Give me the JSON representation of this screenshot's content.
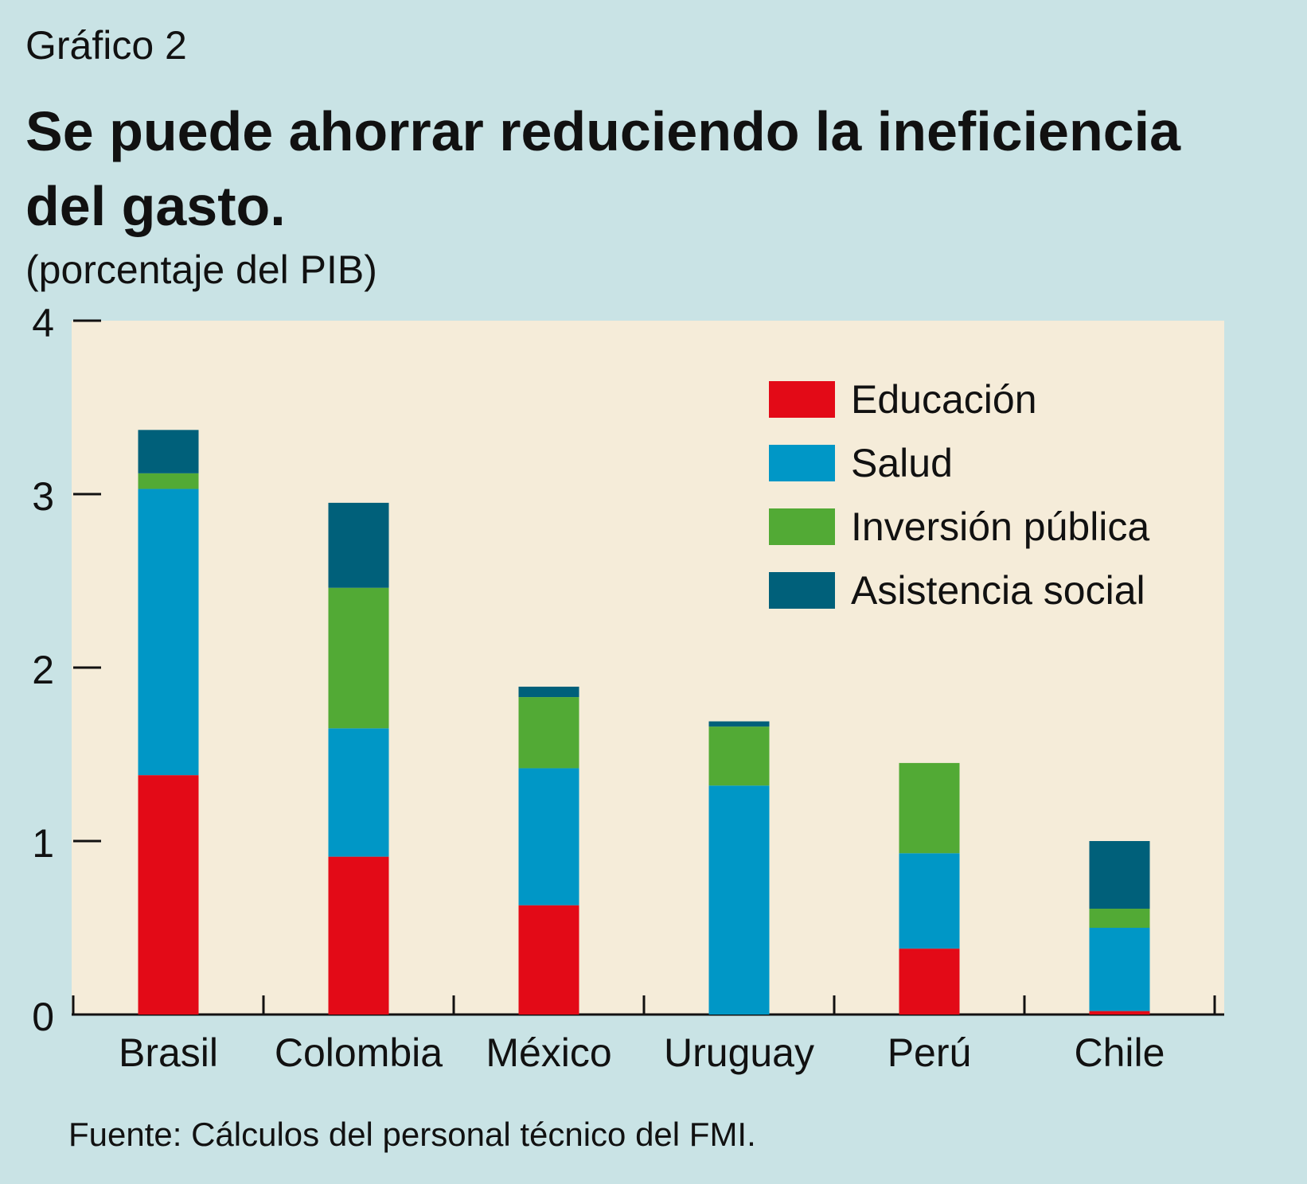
{
  "header": {
    "eyebrow": "Gráfico 2",
    "title": "Se puede ahorrar reduciendo la ineficiencia del gasto.",
    "subtitle": "(porcentaje del PIB)"
  },
  "footer": {
    "source": "Fuente: Cálculos del personal técnico del FMI."
  },
  "colors": {
    "page_bg": "#c9e3e5",
    "plot_bg": "#f5ecd9",
    "educacion": "#e30a17",
    "salud": "#0097c6",
    "inversion": "#52aa35",
    "asistencia": "#00607a"
  },
  "chart_data": {
    "type": "bar",
    "stacked": true,
    "title": "Se puede ahorrar reduciendo la ineficiencia del gasto.",
    "ylabel": "(porcentaje del PIB)",
    "ylim": [
      0,
      4
    ],
    "yticks": [
      0,
      1,
      2,
      3,
      4
    ],
    "categories": [
      "Brasil",
      "Colombia",
      "México",
      "Uruguay",
      "Perú",
      "Chile"
    ],
    "legend_position": "top-right",
    "series": [
      {
        "name": "Educación",
        "color": "#e30a17",
        "values": [
          1.38,
          0.91,
          0.63,
          0.0,
          0.38,
          0.02
        ]
      },
      {
        "name": "Salud",
        "color": "#0097c6",
        "values": [
          1.65,
          0.74,
          0.79,
          1.32,
          0.55,
          0.48
        ]
      },
      {
        "name": "Inversión pública",
        "color": "#52aa35",
        "values": [
          0.09,
          0.81,
          0.41,
          0.34,
          0.52,
          0.11
        ]
      },
      {
        "name": "Asistencia social",
        "color": "#00607a",
        "values": [
          0.25,
          0.49,
          0.06,
          0.03,
          0.0,
          0.39
        ]
      }
    ]
  }
}
